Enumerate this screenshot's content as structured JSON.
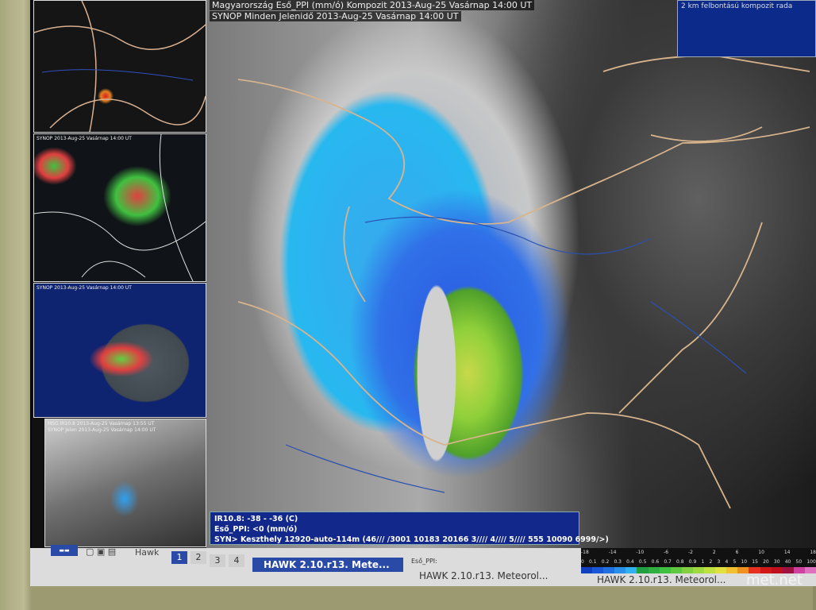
{
  "header": {
    "line1": "Magyarország Eső_PPI (mm/ó)  Kompozit  2013-Aug-25 Vasárnap 14:00 UT",
    "line2": "SYNOP Minden Jelenidő  2013-Aug-25 Vasárnap 14:00 UT"
  },
  "infobox": {
    "text": "2 km felbontású kompozit rada"
  },
  "thumbnails": [
    {
      "caption": ""
    },
    {
      "caption": "SYNOP 2013-Aug-25 Vasárnap 14:00 UT"
    },
    {
      "caption": "SYNOP 2013-Aug-25 Vasárnap 14:00 UT"
    },
    {
      "caption": "MSG IR10.8  2013-Aug-25 Vasárnap 13:55 UT",
      "caption2": "SYNOP Jelen  2013-Aug-25 Vasárnap 14:00 UT"
    }
  ],
  "syn_box": {
    "line1": "IR10.8: -38 - -36 (C)",
    "line2": "Eső_PPI: <0 (mm/ó)",
    "line3": "SYN> Keszthely 12920-auto-114m  (46/// /3001 10183 20166 3//// 4//// 5//// 555 10090 6999/>)"
  },
  "taskbar": {
    "menu_label": "Hawk",
    "workspaces": [
      "1",
      "2",
      "3",
      "4"
    ],
    "active_workspace": "1",
    "tasks": [
      {
        "label": "HAWK 2.10.r13.   Mete...",
        "active": true
      },
      {
        "label": "HAWK 2.10.r13.   Meteorol...",
        "active": false
      },
      {
        "label": "HAWK 2.10.r13.   Meteorol...",
        "active": false
      }
    ]
  },
  "legend": {
    "label": "Eső_PPI:",
    "top_ticks": [
      "-18",
      "-14",
      "-10",
      "-6",
      "-2",
      "2",
      "6",
      "10",
      "14",
      "18"
    ],
    "ticks": [
      "0",
      "0.1",
      "0.2",
      "0.3",
      "0.4",
      "0.5",
      "0.6",
      "0.7",
      "0.8",
      "0.9",
      "1",
      "2",
      "3",
      "4",
      "5",
      "10",
      "15",
      "20",
      "30",
      "40",
      "50",
      "100"
    ],
    "colors": [
      "#1040c0",
      "#1858d8",
      "#2070e0",
      "#2890e8",
      "#30b0f0",
      "#20a040",
      "#30b040",
      "#40c040",
      "#60c840",
      "#80d040",
      "#a0d840",
      "#c0e040",
      "#e0e040",
      "#f0c030",
      "#f09020",
      "#e83020",
      "#d01818",
      "#c01020",
      "#a01040",
      "#d040a0",
      "#e070c0"
    ]
  },
  "watermark": "met.net"
}
